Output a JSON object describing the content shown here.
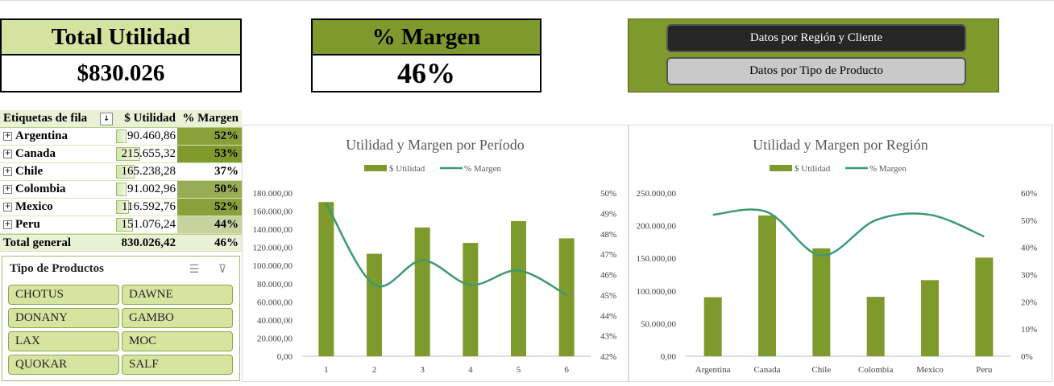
{
  "kpis": {
    "utilidad": {
      "title": "Total Utilidad",
      "value": "$830.026"
    },
    "margen": {
      "title": "% Margen",
      "value": "46%"
    }
  },
  "nav": {
    "region_cliente": "Datos por Región y Cliente",
    "tipo_producto": "Datos por Tipo de Producto"
  },
  "pivot": {
    "headers": [
      "Etiquetas de fila",
      "$ Utilidad",
      "% Margen"
    ],
    "rows": [
      {
        "label": "Argentina",
        "utilidad": "90.460,86",
        "margen": "52%"
      },
      {
        "label": "Canada",
        "utilidad": "215.655,32",
        "margen": "53%"
      },
      {
        "label": "Chile",
        "utilidad": "165.238,28",
        "margen": "37%"
      },
      {
        "label": "Colombia",
        "utilidad": "91.002,96",
        "margen": "50%"
      },
      {
        "label": "Mexico",
        "utilidad": "116.592,76",
        "margen": "52%"
      },
      {
        "label": "Peru",
        "utilidad": "151.076,24",
        "margen": "44%"
      }
    ],
    "total": {
      "label": "Total general",
      "utilidad": "830.026,42",
      "margen": "46%"
    },
    "bar_fractions": [
      0.42,
      1.0,
      0.77,
      0.42,
      0.54,
      0.7
    ],
    "margen_colors": [
      "#8aa03a",
      "#7f9a2c",
      "#ffffff",
      "#98ad55",
      "#8aa03a",
      "#c7d39f"
    ]
  },
  "slicer": {
    "title": "Tipo de Productos",
    "items": [
      "CHOTUS",
      "DAWNE",
      "DONANY",
      "GAMBO",
      "LAX",
      "MOC",
      "QUOKAR",
      "SALF"
    ],
    "icons": [
      "multi-select-icon",
      "clear-filter-icon"
    ]
  },
  "colors": {
    "olive": "#7f9a2c",
    "line": "#3c9a72",
    "kpi_head_light": "#d4e39f"
  },
  "chart_data": [
    {
      "type": "bar",
      "title": "Utilidad y Margen por Período",
      "legend": [
        "$ Utilidad",
        "% Margen"
      ],
      "categories": [
        "1",
        "2",
        "3",
        "4",
        "5",
        "6"
      ],
      "series": [
        {
          "name": "$ Utilidad",
          "values": [
            170000,
            113000,
            142000,
            125000,
            149000,
            130000
          ]
        },
        {
          "name": "% Margen",
          "type": "line",
          "axis": "right",
          "values": [
            49.5,
            45.5,
            46.7,
            45.5,
            46.2,
            45.0
          ]
        }
      ],
      "yticks": [
        "180.000,00",
        "160.000,00",
        "140.000,00",
        "120.000,00",
        "100.000,00",
        "80.000,00",
        "60.000,00",
        "40.000,00",
        "20.000,00",
        "0,00"
      ],
      "y2ticks": [
        "50%",
        "49%",
        "48%",
        "47%",
        "46%",
        "45%",
        "44%",
        "43%",
        "42%"
      ],
      "ylim": [
        0,
        180000
      ],
      "y2lim": [
        42,
        50
      ],
      "legend_position": "top"
    },
    {
      "type": "bar",
      "title": "Utilidad y Margen por Región",
      "legend": [
        "$ Utilidad",
        "% Margen"
      ],
      "categories": [
        "Argentina",
        "Canada",
        "Chile",
        "Colombia",
        "Mexico",
        "Peru"
      ],
      "series": [
        {
          "name": "$ Utilidad",
          "values": [
            90460.86,
            215655.32,
            165238.28,
            91002.96,
            116592.76,
            151076.24
          ]
        },
        {
          "name": "% Margen",
          "type": "line",
          "axis": "right",
          "values": [
            52,
            53,
            37,
            50,
            52,
            44
          ]
        }
      ],
      "yticks": [
        "250.000,00",
        "200.000,00",
        "150.000,00",
        "100.000,00",
        "50.000,00",
        "0,00"
      ],
      "y2ticks": [
        "60%",
        "50%",
        "40%",
        "30%",
        "20%",
        "10%",
        "0%"
      ],
      "ylim": [
        0,
        250000
      ],
      "y2lim": [
        0,
        60
      ],
      "legend_position": "top"
    }
  ]
}
